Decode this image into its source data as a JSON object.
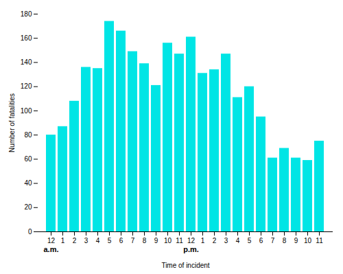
{
  "chart_data": {
    "type": "bar",
    "categories": [
      "12",
      "1",
      "2",
      "3",
      "4",
      "5",
      "6",
      "7",
      "8",
      "9",
      "10",
      "11",
      "12",
      "1",
      "2",
      "3",
      "4",
      "5",
      "6",
      "7",
      "8",
      "9",
      "10",
      "11"
    ],
    "values": [
      80,
      87,
      108,
      136,
      135,
      174,
      166,
      149,
      139,
      121,
      156,
      147,
      161,
      131,
      134,
      147,
      111,
      120,
      95,
      61,
      69,
      61,
      59,
      75
    ],
    "color": "#00E5E5",
    "xlabel": "Time of incident",
    "ylabel": "Number of fatalities",
    "annotations": [
      {
        "text": "a.m.",
        "x": 0
      },
      {
        "text": "p.m.",
        "x": 12
      }
    ],
    "ylim": [
      0,
      180
    ],
    "yticks": [
      0,
      20,
      40,
      60,
      80,
      100,
      120,
      140,
      160,
      180
    ],
    "grid": false
  }
}
